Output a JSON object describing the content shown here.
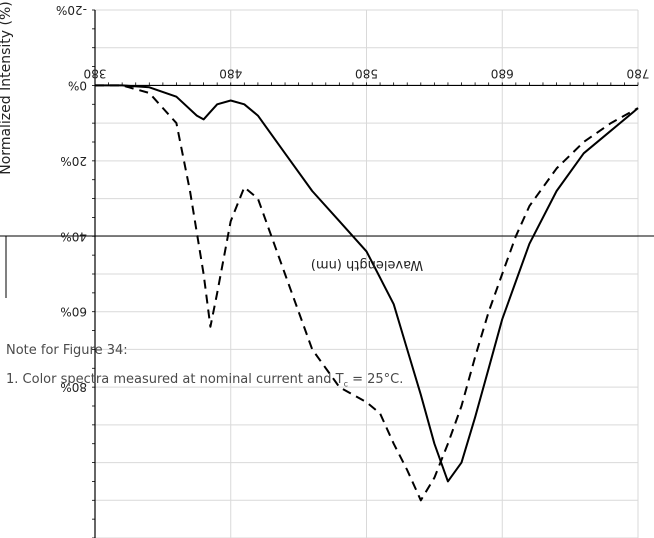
{
  "chart_data": {
    "type": "line",
    "xlabel": "Wavelength (nm)",
    "ylabel": "Normalized Intensity (%)",
    "x_ticks": [
      "380",
      "480",
      "580",
      "680",
      "780"
    ],
    "y_ticks": [
      "-20%",
      "0%",
      "20%",
      "40%",
      "60%",
      "80%"
    ],
    "xlim": [
      380,
      780
    ],
    "ylim": [
      -20,
      120
    ],
    "grid": true,
    "orientation": "rotated 180 degrees",
    "series": [
      {
        "style": "solid",
        "x": [
          380,
          400,
          420,
          440,
          455,
          460,
          465,
          470,
          480,
          490,
          500,
          520,
          540,
          560,
          580,
          600,
          610,
          620,
          630,
          640,
          650,
          660,
          670,
          680,
          690,
          700,
          720,
          740,
          760,
          780
        ],
        "y": [
          0,
          0,
          0.5,
          3,
          8,
          9,
          7,
          5,
          4,
          5,
          8,
          18,
          28,
          36,
          44,
          58,
          70,
          82,
          95,
          105,
          100,
          88,
          75,
          62,
          52,
          42,
          28,
          18,
          12,
          6
        ]
      },
      {
        "style": "dashed",
        "x": [
          380,
          400,
          420,
          440,
          450,
          460,
          465,
          470,
          480,
          490,
          500,
          520,
          530,
          540,
          560,
          580,
          590,
          600,
          610,
          620,
          630,
          640,
          650,
          660,
          670,
          680,
          690,
          700,
          720,
          740,
          760,
          780
        ],
        "y": [
          0,
          0,
          2,
          10,
          28,
          50,
          64,
          55,
          36,
          27,
          30,
          50,
          60,
          70,
          80,
          84,
          87,
          95,
          102,
          110,
          104,
          95,
          85,
          72,
          60,
          50,
          40,
          32,
          22,
          15,
          10,
          6
        ]
      }
    ]
  },
  "note": {
    "title": "Note for Figure 34:",
    "line1_prefix": "1. Color spectra measured at nominal current and T",
    "line1_sub": "c",
    "line1_suffix": " = 25°C."
  }
}
